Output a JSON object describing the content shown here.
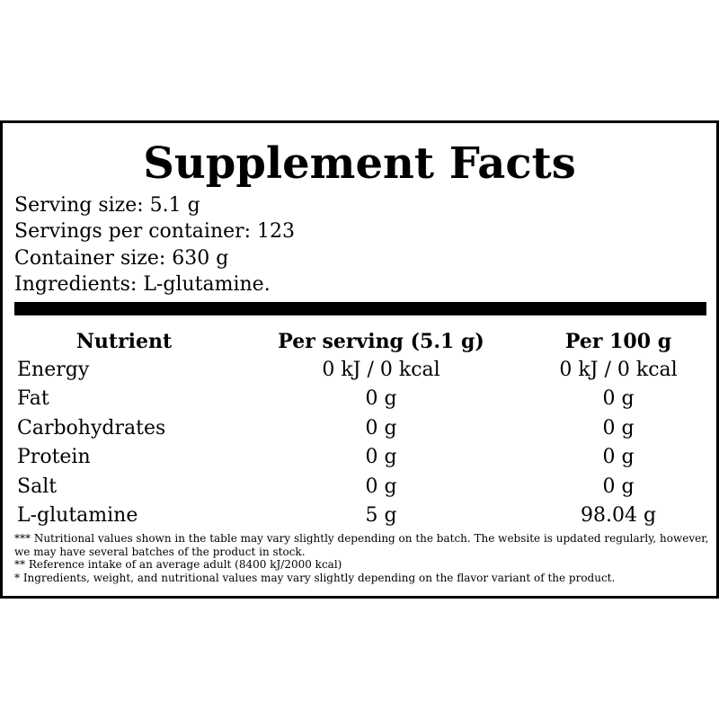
{
  "header": {
    "title": "Supplement Facts"
  },
  "info": [
    "Serving size: 5.1 g",
    "Servings per container: 123",
    "Container size: 630 g",
    "Ingredients: L-glutamine."
  ],
  "table": {
    "columns": [
      "Nutrient",
      "Per serving (5.1 g)",
      "Per 100 g"
    ],
    "rows": [
      [
        "Energy",
        "0 kJ / 0 kcal",
        "0 kJ / 0 kcal"
      ],
      [
        "Fat",
        "0 g",
        "0 g"
      ],
      [
        "Carbohydrates",
        "0 g",
        "0 g"
      ],
      [
        "Protein",
        "0 g",
        "0 g"
      ],
      [
        "Salt",
        "0 g",
        "0 g"
      ],
      [
        "L-glutamine",
        "5 g",
        "98.04 g"
      ]
    ]
  },
  "footnotes": [
    "*** Nutritional values shown in the table may vary slightly depending on the batch. The website is updated regularly, however, we may have several batches of the product in stock.",
    "** Reference intake of an average adult (8400 kJ/2000 kcal)",
    "* Ingredients, weight, and nutritional values may vary slightly depending on the flavor variant of the product."
  ]
}
